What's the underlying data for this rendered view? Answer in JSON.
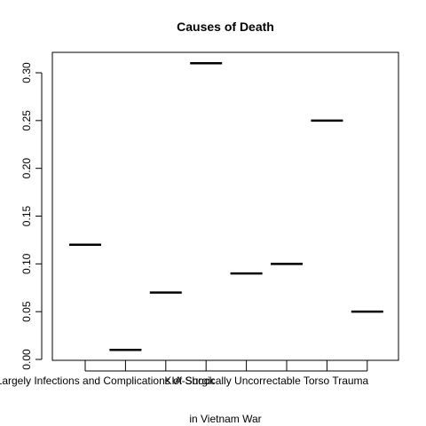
{
  "chart_data": {
    "type": "box",
    "title": "Causes of Death",
    "xlabel": "in Vietnam War",
    "ylabel": "",
    "ylim": [
      0,
      0.32
    ],
    "yticks": [
      "0.00",
      "0.05",
      "0.10",
      "0.15",
      "0.20",
      "0.25",
      "0.30"
    ],
    "categories": [
      "Largely Infections and Complications of Shock",
      "",
      "",
      "",
      "KIA-Surgically Uncorrectable Torso Trauma",
      "",
      "",
      ""
    ],
    "values": [
      0.12,
      0.01,
      0.07,
      0.31,
      0.09,
      0.1,
      0.25,
      0.05
    ],
    "grid": false,
    "legend": "none"
  }
}
